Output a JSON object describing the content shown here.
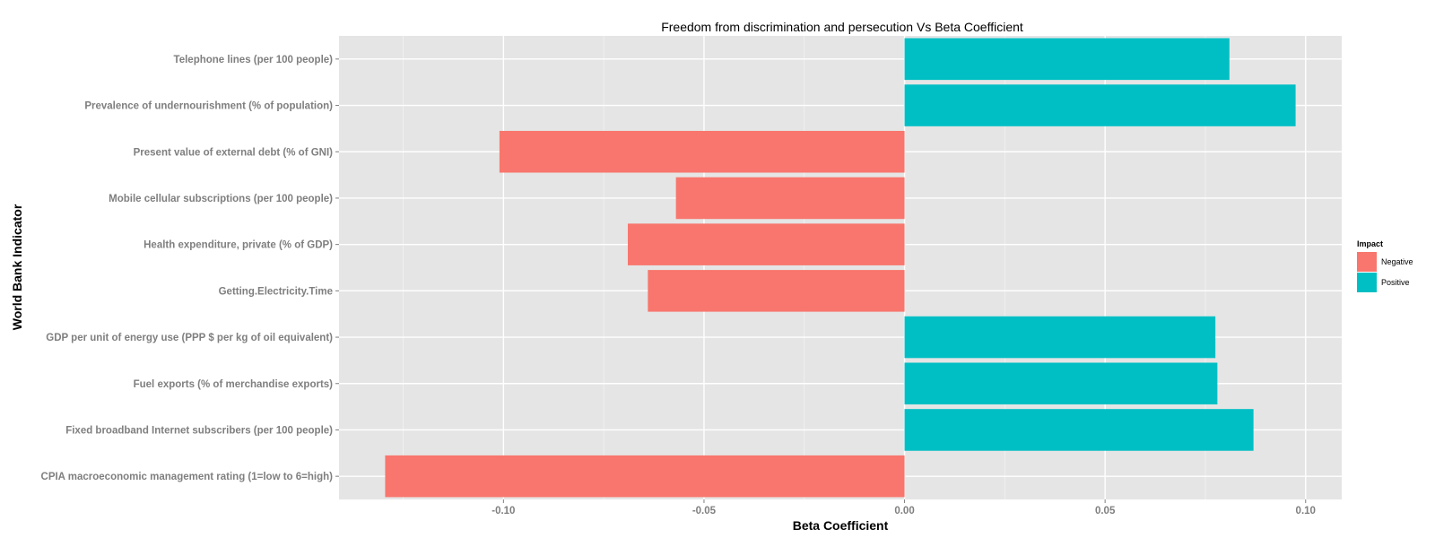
{
  "chart_data": {
    "type": "bar",
    "orientation": "horizontal",
    "title": "Freedom from discrimination and persecution Vs Beta Coefficient",
    "xlabel": "Beta Coefficient",
    "ylabel": "World Bank Indicator",
    "xlim": [
      -0.141,
      0.109
    ],
    "xticks": [
      -0.1,
      -0.05,
      0.0,
      0.05,
      0.1
    ],
    "xtick_labels": [
      "-0.10",
      "-0.05",
      "0.00",
      "0.05",
      "0.10"
    ],
    "grid": true,
    "legend": {
      "title": "Impact",
      "position": "right",
      "entries": [
        {
          "label": "Negative",
          "color": "#f8766d"
        },
        {
          "label": "Positive",
          "color": "#00bfc4"
        }
      ]
    },
    "categories": [
      "Telephone lines (per 100 people)",
      "Prevalence of undernourishment (% of population)",
      "Present value of external debt (% of GNI)",
      "Mobile cellular subscriptions (per 100 people)",
      "Health expenditure, private (% of GDP)",
      "Getting.Electricity.Time",
      "GDP per unit of energy use (PPP $ per kg of oil equivalent)",
      "Fuel exports (% of merchandise exports)",
      "Fixed broadband Internet subscribers (per 100 people)",
      "CPIA macroeconomic management rating (1=low to 6=high)"
    ],
    "values": [
      0.081,
      0.0975,
      -0.101,
      -0.057,
      -0.069,
      -0.064,
      0.0775,
      0.078,
      0.087,
      -0.1295
    ],
    "impact": [
      "Positive",
      "Positive",
      "Negative",
      "Negative",
      "Negative",
      "Negative",
      "Positive",
      "Positive",
      "Positive",
      "Negative"
    ],
    "colors": {
      "Negative": "#f8766d",
      "Positive": "#00bfc4",
      "panel": "#e5e5e5",
      "grid_major": "#ffffff",
      "grid_minor": "#f2f2f2"
    }
  }
}
